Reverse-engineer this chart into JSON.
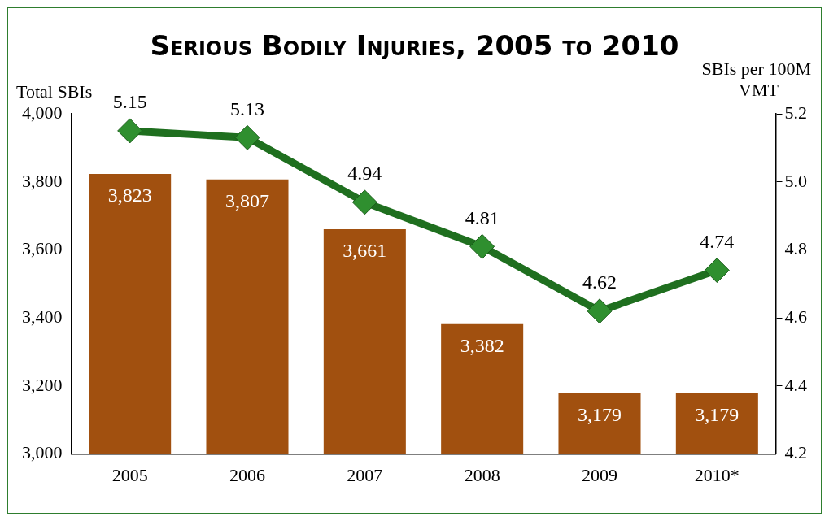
{
  "chart_data": {
    "type": "bar",
    "title": "Serious Bodily Injuries, 2005 to 2010",
    "ylabel": "Total SBIs",
    "y2label": "SBIs per 100M VMT",
    "categories": [
      "2005",
      "2006",
      "2007",
      "2008",
      "2009",
      "2010*"
    ],
    "series": [
      {
        "color": "#a1500f",
        "values": [
          3823,
          3807,
          3661,
          3382,
          3179,
          3179
        ],
        "value_labels": [
          "3,823",
          "3,807",
          "3,661",
          "3,382",
          "3,179",
          "3,179"
        ]
      },
      {
        "type": "line",
        "axis": "y2",
        "color": "#1f6f1f",
        "values": [
          5.15,
          5.13,
          4.94,
          4.81,
          4.62,
          4.74
        ]
      }
    ],
    "ylim": [
      3000,
      4000
    ],
    "yticks": [
      {
        "value": 3000,
        "label": "3,000"
      },
      {
        "value": 3200,
        "label": "3,200"
      },
      {
        "value": 3400,
        "label": "3,400"
      },
      {
        "value": 3600,
        "label": "3,600"
      },
      {
        "value": 3800,
        "label": "3,800"
      },
      {
        "value": 4000,
        "label": "4,000"
      }
    ],
    "y2lim": [
      4.2,
      5.2
    ],
    "y2ticks": [
      4.2,
      4.4,
      4.6,
      4.8,
      {
        "value": 5,
        "label": "5.0"
      },
      5.2
    ],
    "marker": "diamond",
    "line_style": "solid",
    "data_labels": true,
    "grid": false,
    "legend": false
  }
}
